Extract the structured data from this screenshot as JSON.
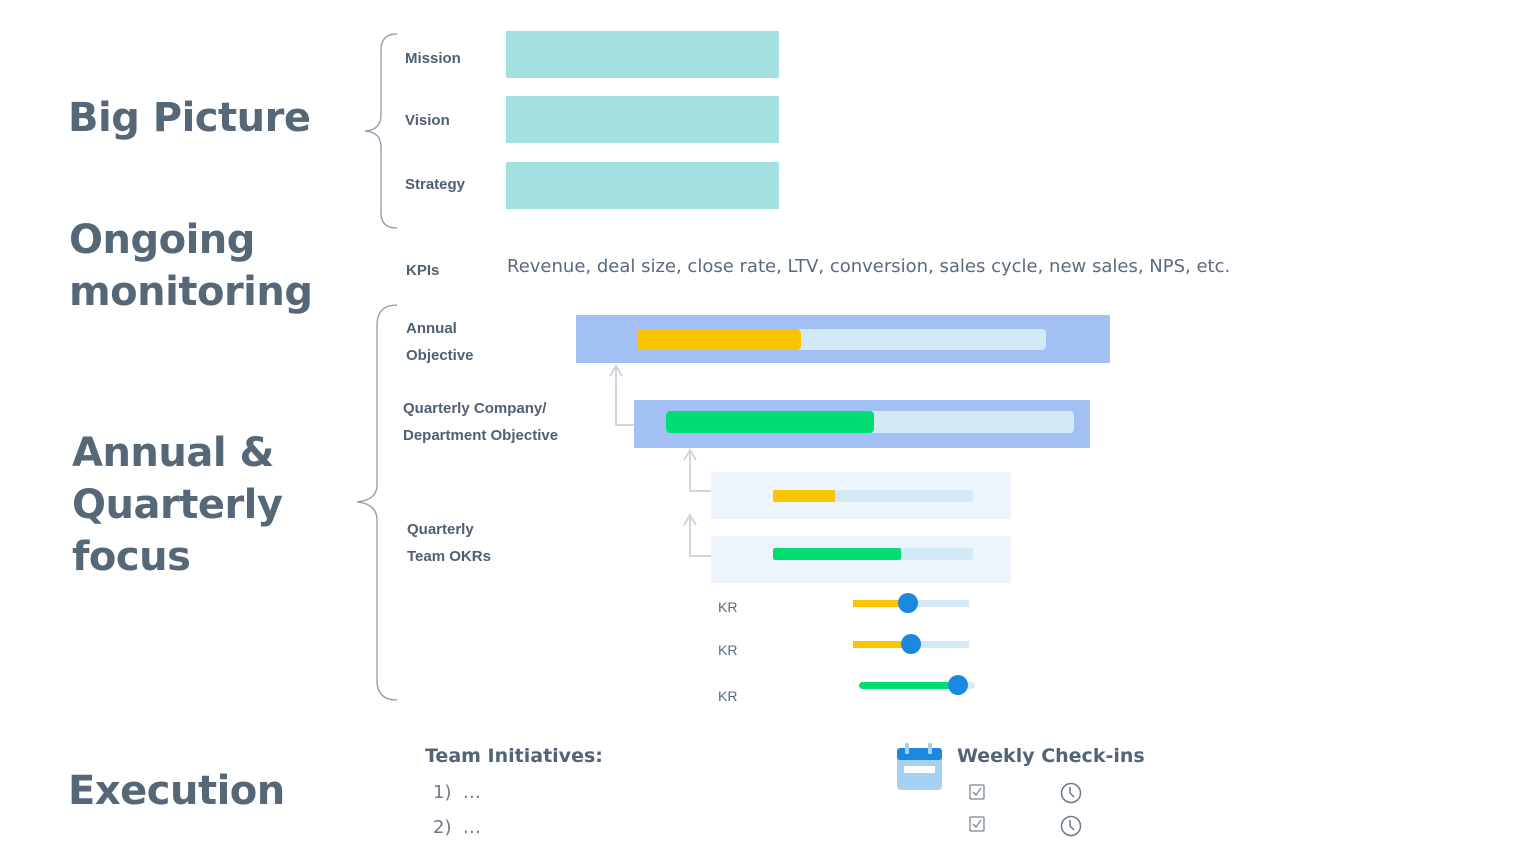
{
  "sections": {
    "big_picture": "Big Picture",
    "ongoing": "Ongoing monitoring",
    "annual": "Annual & Quarterly focus",
    "execution": "Execution"
  },
  "big_picture": {
    "items": [
      {
        "label": "Mission"
      },
      {
        "label": "Vision"
      },
      {
        "label": "Strategy"
      }
    ],
    "box_color": "#a6e1e2"
  },
  "kpis": {
    "label": "KPIs",
    "text": "Revenue, deal size, close rate, LTV, conversion, sales cycle, new sales, NPS, etc."
  },
  "okr": {
    "annual_label": "Annual Objective",
    "company_label": "Quarterly Company/ Department Objective",
    "team_label": "Quarterly Team OKRs",
    "annual_progress": 0.4,
    "annual_color": "#fbc400",
    "company_progress": 0.51,
    "company_color": "#00dd72",
    "team_progress": [
      {
        "value": 0.31,
        "color": "#fbc400"
      },
      {
        "value": 0.64,
        "color": "#00dd72"
      }
    ],
    "krs": [
      {
        "label": "KR",
        "value": 0.47,
        "color": "#fbc400"
      },
      {
        "label": "KR",
        "value": 0.5,
        "color": "#fbc400"
      },
      {
        "label": "KR",
        "value": 0.85,
        "color": "#00dd72"
      }
    ]
  },
  "execution": {
    "initiatives_title": "Team Initiatives:",
    "initiatives": [
      "1)  …",
      "2)  …"
    ],
    "checkins_title": "Weekly Check-ins",
    "icons": [
      "calendar-icon",
      "checkbox-icon",
      "clock-icon"
    ]
  }
}
